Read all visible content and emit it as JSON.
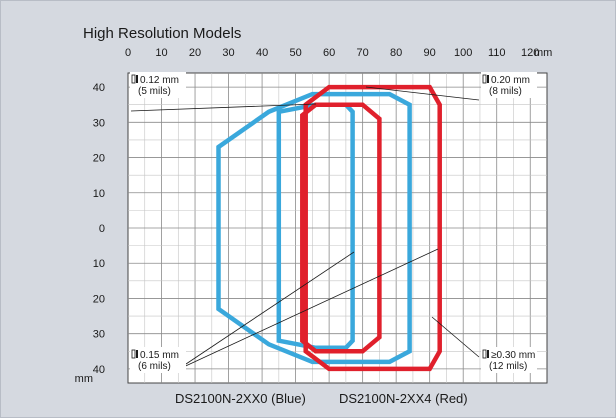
{
  "chart_data": {
    "type": "line",
    "title": "High Resolution Models",
    "x_unit": "mm",
    "y_unit": "mm",
    "x_ticks": [
      0,
      10,
      20,
      30,
      40,
      50,
      60,
      70,
      80,
      90,
      100,
      110,
      120
    ],
    "y_tick_labels": [
      "40",
      "30",
      "20",
      "10",
      "0",
      "10",
      "20",
      "30",
      "40"
    ],
    "xlim": [
      0,
      125
    ],
    "ylim": [
      -44,
      44
    ],
    "grid": true,
    "captions": [
      "DS2100N-2XX0 (Blue)",
      "DS2100N-2XX4 (Red)"
    ],
    "colors": {
      "blue": "#3aa8dc",
      "red": "#e0202c"
    },
    "annotations": [
      {
        "name": "res-0-12",
        "line1": "0.12 mm",
        "line2": "(5 mils)"
      },
      {
        "name": "res-0-20",
        "line1": "0.20 mm",
        "line2": "(8 mils)"
      },
      {
        "name": "res-0-15",
        "line1": "0.15 mm",
        "line2": "(6 mils)"
      },
      {
        "name": "res-0-30",
        "line1": "≥0.30 mm",
        "line2": "(12 mils)"
      }
    ],
    "series": [
      {
        "color": "blue",
        "resolution": "0.12 mm",
        "points": [
          [
            45,
            33
          ],
          [
            56,
            35
          ],
          [
            65,
            35
          ],
          [
            67,
            33
          ],
          [
            67,
            -32
          ],
          [
            65,
            -34
          ],
          [
            56,
            -34
          ],
          [
            45,
            -32
          ]
        ]
      },
      {
        "color": "blue",
        "resolution": "0.15 mm",
        "points": [
          [
            27,
            23
          ],
          [
            42,
            33
          ],
          [
            55,
            38
          ],
          [
            78,
            38
          ],
          [
            84,
            35
          ],
          [
            84,
            -35
          ],
          [
            78,
            -38
          ],
          [
            55,
            -38
          ],
          [
            42,
            -33
          ],
          [
            27,
            -23
          ]
        ]
      },
      {
        "color": "red",
        "resolution": "0.20 mm",
        "points": [
          [
            52,
            32
          ],
          [
            56,
            35
          ],
          [
            70,
            35
          ],
          [
            75,
            31
          ],
          [
            75,
            -31
          ],
          [
            70,
            -35
          ],
          [
            56,
            -35
          ],
          [
            52,
            -32
          ]
        ]
      },
      {
        "color": "red",
        "resolution": "≥0.30 mm",
        "points": [
          [
            53,
            35
          ],
          [
            60,
            40
          ],
          [
            90,
            40
          ],
          [
            93,
            35
          ],
          [
            93,
            -35
          ],
          [
            90,
            -40
          ],
          [
            60,
            -40
          ],
          [
            53,
            -35
          ]
        ]
      }
    ]
  }
}
